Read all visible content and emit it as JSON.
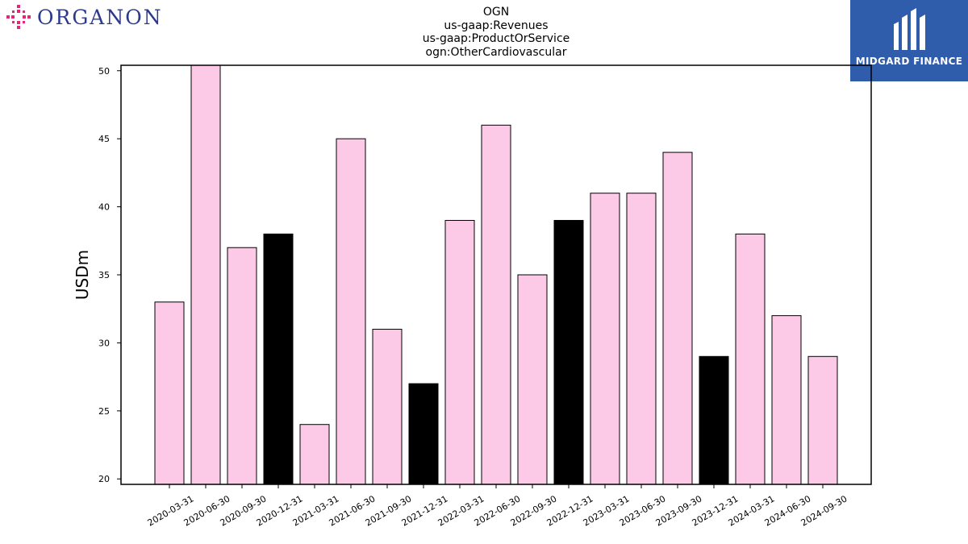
{
  "header": {
    "title_lines": [
      "OGN",
      "us-gaap:Revenues",
      "us-gaap:ProductOrService",
      "ogn:OtherCardiovascular"
    ]
  },
  "logos": {
    "left": {
      "text": "ORGANON",
      "icon": "organon-logo-icon",
      "color": "#2b3a8f",
      "accent": "#e0267d"
    },
    "right": {
      "text": "MIDGARD FINANCE",
      "icon": "midgard-logo-icon",
      "background": "#2f5cab"
    }
  },
  "chart_data": {
    "type": "bar",
    "ylabel": "USDm",
    "xlabel": "",
    "ylim": [
      19.6,
      50.4
    ],
    "yticks": [
      20,
      25,
      30,
      35,
      40,
      45,
      50
    ],
    "categories": [
      "2020-03-31",
      "2020-06-30",
      "2020-09-30",
      "2020-12-31",
      "2021-03-31",
      "2021-06-30",
      "2021-09-30",
      "2021-12-31",
      "2022-03-31",
      "2022-06-30",
      "2022-09-30",
      "2022-12-31",
      "2023-03-31",
      "2023-06-30",
      "2023-09-30",
      "2023-12-31",
      "2024-03-31",
      "2024-06-30",
      "2024-09-30"
    ],
    "values": [
      33,
      51,
      37,
      38,
      24,
      45,
      31,
      27,
      39,
      46,
      35,
      39,
      41,
      41,
      44,
      29,
      38,
      32,
      29
    ],
    "highlight": [
      false,
      false,
      false,
      true,
      false,
      false,
      false,
      true,
      false,
      false,
      false,
      true,
      false,
      false,
      false,
      true,
      false,
      false,
      false
    ],
    "colors": {
      "bar": "#fccae6",
      "highlight": "#000000",
      "edge": "#000000"
    },
    "grid": false
  }
}
